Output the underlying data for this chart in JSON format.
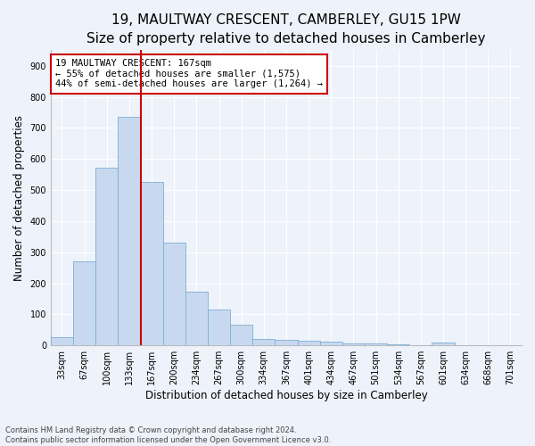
{
  "title": "19, MAULTWAY CRESCENT, CAMBERLEY, GU15 1PW",
  "subtitle": "Size of property relative to detached houses in Camberley",
  "xlabel": "Distribution of detached houses by size in Camberley",
  "ylabel": "Number of detached properties",
  "categories": [
    "33sqm",
    "67sqm",
    "100sqm",
    "133sqm",
    "167sqm",
    "200sqm",
    "234sqm",
    "267sqm",
    "300sqm",
    "334sqm",
    "367sqm",
    "401sqm",
    "434sqm",
    "467sqm",
    "501sqm",
    "534sqm",
    "567sqm",
    "601sqm",
    "634sqm",
    "668sqm",
    "701sqm"
  ],
  "values": [
    27,
    270,
    573,
    737,
    527,
    330,
    172,
    115,
    67,
    22,
    17,
    15,
    12,
    7,
    5,
    4,
    1,
    8,
    0,
    0,
    0
  ],
  "bar_color": "#c8d9ef",
  "bar_edge_color": "#7bafd4",
  "highlight_line_color": "#cc0000",
  "highlight_bar_index": 3,
  "annotation_text": "19 MAULTWAY CRESCENT: 167sqm\n← 55% of detached houses are smaller (1,575)\n44% of semi-detached houses are larger (1,264) →",
  "annotation_box_facecolor": "#ffffff",
  "annotation_box_edgecolor": "#cc0000",
  "ylim": [
    0,
    950
  ],
  "yticks": [
    0,
    100,
    200,
    300,
    400,
    500,
    600,
    700,
    800,
    900
  ],
  "background_color": "#eef2fa",
  "grid_color": "#ffffff",
  "footer_text": "Contains HM Land Registry data © Crown copyright and database right 2024.\nContains public sector information licensed under the Open Government Licence v3.0.",
  "title_fontsize": 11,
  "axis_label_fontsize": 8.5,
  "tick_fontsize": 7,
  "annotation_fontsize": 7.5,
  "footer_fontsize": 6
}
